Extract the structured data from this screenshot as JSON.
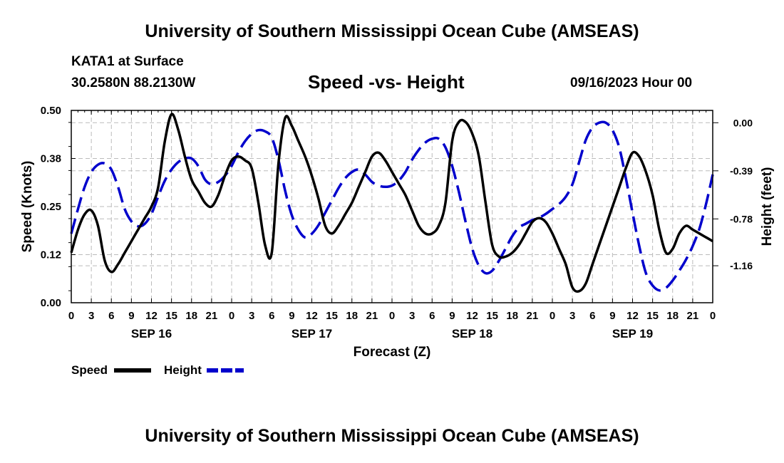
{
  "header": {
    "title": "University of Southern Mississippi Ocean Cube (AMSEAS)",
    "station": "KATA1 at Surface",
    "coords": "30.2580N  88.2130W",
    "datetime": "09/16/2023 Hour 00"
  },
  "footer": {
    "title": "University of Southern Mississippi Ocean Cube (AMSEAS)"
  },
  "chart_data": {
    "type": "line",
    "title": "Speed -vs- Height",
    "xlabel": "Forecast (Z)",
    "ylabel_left": "Speed (Knots)",
    "ylabel_right": "Height (feet)",
    "x_range_hours": [
      0,
      96
    ],
    "x_ticks": [
      {
        "hour": 0,
        "label": "0"
      },
      {
        "hour": 3,
        "label": "3"
      },
      {
        "hour": 6,
        "label": "6"
      },
      {
        "hour": 9,
        "label": "9"
      },
      {
        "hour": 12,
        "label": "12"
      },
      {
        "hour": 15,
        "label": "15"
      },
      {
        "hour": 18,
        "label": "18"
      },
      {
        "hour": 21,
        "label": "21"
      },
      {
        "hour": 24,
        "label": "0"
      },
      {
        "hour": 27,
        "label": "3"
      },
      {
        "hour": 30,
        "label": "6"
      },
      {
        "hour": 33,
        "label": "9"
      },
      {
        "hour": 36,
        "label": "12"
      },
      {
        "hour": 39,
        "label": "15"
      },
      {
        "hour": 42,
        "label": "18"
      },
      {
        "hour": 45,
        "label": "21"
      },
      {
        "hour": 48,
        "label": "0"
      },
      {
        "hour": 51,
        "label": "3"
      },
      {
        "hour": 54,
        "label": "6"
      },
      {
        "hour": 57,
        "label": "9"
      },
      {
        "hour": 60,
        "label": "12"
      },
      {
        "hour": 63,
        "label": "15"
      },
      {
        "hour": 66,
        "label": "18"
      },
      {
        "hour": 69,
        "label": "21"
      },
      {
        "hour": 72,
        "label": "0"
      },
      {
        "hour": 75,
        "label": "3"
      },
      {
        "hour": 78,
        "label": "6"
      },
      {
        "hour": 81,
        "label": "9"
      },
      {
        "hour": 84,
        "label": "12"
      },
      {
        "hour": 87,
        "label": "15"
      },
      {
        "hour": 90,
        "label": "18"
      },
      {
        "hour": 93,
        "label": "21"
      },
      {
        "hour": 96,
        "label": "0"
      }
    ],
    "day_labels": [
      {
        "hour": 12,
        "label": "SEP 16"
      },
      {
        "hour": 36,
        "label": "SEP 17"
      },
      {
        "hour": 60,
        "label": "SEP 18"
      },
      {
        "hour": 84,
        "label": "SEP 19"
      }
    ],
    "y_left": {
      "min": 0.0,
      "max": 0.5,
      "ticks": [
        "0.00",
        "0.12",
        "0.25",
        "0.38",
        "0.50"
      ]
    },
    "y_right": {
      "min": -1.46,
      "max": 0.1,
      "ticks": [
        "0.00",
        "-0.39",
        "-0.78",
        "-1.16"
      ]
    },
    "series": [
      {
        "name": "Speed",
        "axis": "left",
        "color": "#000000",
        "dash": "solid",
        "points": [
          [
            0,
            0.13
          ],
          [
            1,
            0.19
          ],
          [
            2,
            0.23
          ],
          [
            3,
            0.24
          ],
          [
            4,
            0.2
          ],
          [
            5,
            0.11
          ],
          [
            6,
            0.08
          ],
          [
            7,
            0.1
          ],
          [
            8,
            0.13
          ],
          [
            9,
            0.16
          ],
          [
            10,
            0.19
          ],
          [
            11,
            0.22
          ],
          [
            12,
            0.25
          ],
          [
            13,
            0.3
          ],
          [
            14,
            0.42
          ],
          [
            15,
            0.49
          ],
          [
            16,
            0.45
          ],
          [
            17,
            0.38
          ],
          [
            18,
            0.32
          ],
          [
            19,
            0.29
          ],
          [
            20,
            0.26
          ],
          [
            21,
            0.25
          ],
          [
            22,
            0.28
          ],
          [
            23,
            0.33
          ],
          [
            24,
            0.37
          ],
          [
            25,
            0.38
          ],
          [
            26,
            0.37
          ],
          [
            27,
            0.35
          ],
          [
            28,
            0.26
          ],
          [
            29,
            0.15
          ],
          [
            30,
            0.13
          ],
          [
            31,
            0.36
          ],
          [
            32,
            0.48
          ],
          [
            33,
            0.46
          ],
          [
            34,
            0.42
          ],
          [
            35,
            0.38
          ],
          [
            36,
            0.33
          ],
          [
            37,
            0.27
          ],
          [
            38,
            0.2
          ],
          [
            39,
            0.18
          ],
          [
            40,
            0.2
          ],
          [
            41,
            0.23
          ],
          [
            42,
            0.26
          ],
          [
            43,
            0.3
          ],
          [
            44,
            0.34
          ],
          [
            45,
            0.38
          ],
          [
            46,
            0.39
          ],
          [
            47,
            0.37
          ],
          [
            48,
            0.34
          ],
          [
            49,
            0.31
          ],
          [
            50,
            0.28
          ],
          [
            51,
            0.24
          ],
          [
            52,
            0.2
          ],
          [
            53,
            0.18
          ],
          [
            54,
            0.18
          ],
          [
            55,
            0.2
          ],
          [
            56,
            0.26
          ],
          [
            57,
            0.42
          ],
          [
            58,
            0.47
          ],
          [
            59,
            0.47
          ],
          [
            60,
            0.44
          ],
          [
            61,
            0.38
          ],
          [
            62,
            0.26
          ],
          [
            63,
            0.15
          ],
          [
            64,
            0.12
          ],
          [
            65,
            0.12
          ],
          [
            66,
            0.13
          ],
          [
            67,
            0.15
          ],
          [
            68,
            0.18
          ],
          [
            69,
            0.21
          ],
          [
            70,
            0.22
          ],
          [
            71,
            0.21
          ],
          [
            72,
            0.18
          ],
          [
            73,
            0.14
          ],
          [
            74,
            0.1
          ],
          [
            75,
            0.04
          ],
          [
            76,
            0.03
          ],
          [
            77,
            0.05
          ],
          [
            78,
            0.1
          ],
          [
            79,
            0.15
          ],
          [
            80,
            0.2
          ],
          [
            81,
            0.25
          ],
          [
            82,
            0.3
          ],
          [
            83,
            0.35
          ],
          [
            84,
            0.39
          ],
          [
            85,
            0.38
          ],
          [
            86,
            0.34
          ],
          [
            87,
            0.28
          ],
          [
            88,
            0.19
          ],
          [
            89,
            0.13
          ],
          [
            90,
            0.14
          ],
          [
            91,
            0.18
          ],
          [
            92,
            0.2
          ],
          [
            93,
            0.19
          ],
          [
            94,
            0.18
          ],
          [
            95,
            0.17
          ],
          [
            96,
            0.16
          ]
        ]
      },
      {
        "name": "Height",
        "axis": "right",
        "color": "#0000cc",
        "dash": "dashed",
        "points": [
          [
            0,
            -0.9
          ],
          [
            1,
            -0.7
          ],
          [
            2,
            -0.52
          ],
          [
            3,
            -0.4
          ],
          [
            4,
            -0.34
          ],
          [
            5,
            -0.33
          ],
          [
            6,
            -0.38
          ],
          [
            7,
            -0.52
          ],
          [
            8,
            -0.7
          ],
          [
            9,
            -0.8
          ],
          [
            10,
            -0.84
          ],
          [
            11,
            -0.82
          ],
          [
            12,
            -0.74
          ],
          [
            13,
            -0.6
          ],
          [
            14,
            -0.47
          ],
          [
            15,
            -0.38
          ],
          [
            16,
            -0.32
          ],
          [
            17,
            -0.29
          ],
          [
            18,
            -0.29
          ],
          [
            19,
            -0.35
          ],
          [
            20,
            -0.46
          ],
          [
            21,
            -0.5
          ],
          [
            22,
            -0.48
          ],
          [
            23,
            -0.43
          ],
          [
            24,
            -0.35
          ],
          [
            25,
            -0.24
          ],
          [
            26,
            -0.15
          ],
          [
            27,
            -0.09
          ],
          [
            28,
            -0.06
          ],
          [
            29,
            -0.07
          ],
          [
            30,
            -0.12
          ],
          [
            31,
            -0.3
          ],
          [
            32,
            -0.55
          ],
          [
            33,
            -0.75
          ],
          [
            34,
            -0.87
          ],
          [
            35,
            -0.93
          ],
          [
            36,
            -0.9
          ],
          [
            37,
            -0.83
          ],
          [
            38,
            -0.73
          ],
          [
            39,
            -0.63
          ],
          [
            40,
            -0.53
          ],
          [
            41,
            -0.45
          ],
          [
            42,
            -0.4
          ],
          [
            43,
            -0.38
          ],
          [
            44,
            -0.42
          ],
          [
            45,
            -0.48
          ],
          [
            46,
            -0.51
          ],
          [
            47,
            -0.52
          ],
          [
            48,
            -0.51
          ],
          [
            49,
            -0.47
          ],
          [
            50,
            -0.4
          ],
          [
            51,
            -0.3
          ],
          [
            52,
            -0.22
          ],
          [
            53,
            -0.16
          ],
          [
            54,
            -0.13
          ],
          [
            55,
            -0.13
          ],
          [
            56,
            -0.2
          ],
          [
            57,
            -0.35
          ],
          [
            58,
            -0.56
          ],
          [
            59,
            -0.8
          ],
          [
            60,
            -1.02
          ],
          [
            61,
            -1.16
          ],
          [
            62,
            -1.22
          ],
          [
            63,
            -1.2
          ],
          [
            64,
            -1.12
          ],
          [
            65,
            -1.02
          ],
          [
            66,
            -0.92
          ],
          [
            67,
            -0.85
          ],
          [
            68,
            -0.82
          ],
          [
            69,
            -0.79
          ],
          [
            70,
            -0.77
          ],
          [
            71,
            -0.74
          ],
          [
            72,
            -0.7
          ],
          [
            73,
            -0.66
          ],
          [
            74,
            -0.6
          ],
          [
            75,
            -0.5
          ],
          [
            76,
            -0.32
          ],
          [
            77,
            -0.14
          ],
          [
            78,
            -0.04
          ],
          [
            79,
            0.0
          ],
          [
            80,
            0.0
          ],
          [
            81,
            -0.06
          ],
          [
            82,
            -0.2
          ],
          [
            83,
            -0.45
          ],
          [
            84,
            -0.73
          ],
          [
            85,
            -1.0
          ],
          [
            86,
            -1.22
          ],
          [
            87,
            -1.32
          ],
          [
            88,
            -1.36
          ],
          [
            89,
            -1.34
          ],
          [
            90,
            -1.28
          ],
          [
            91,
            -1.2
          ],
          [
            92,
            -1.11
          ],
          [
            93,
            -1.0
          ],
          [
            94,
            -0.86
          ],
          [
            95,
            -0.66
          ],
          [
            96,
            -0.42
          ]
        ]
      }
    ],
    "legend": [
      {
        "label": "Speed",
        "color": "#000000",
        "dash": "solid"
      },
      {
        "label": "Height",
        "color": "#0000cc",
        "dash": "dashed"
      }
    ]
  }
}
